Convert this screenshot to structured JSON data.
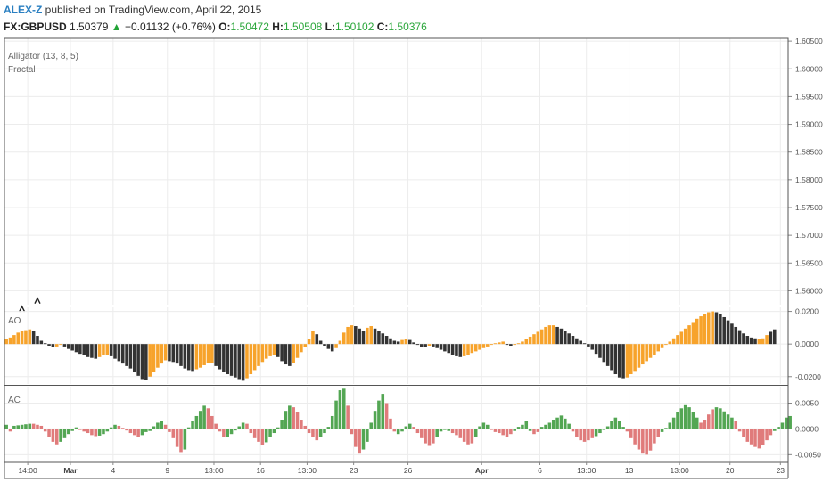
{
  "header": {
    "author": "ALEX-Z",
    "published": " published on TradingView.com, April 22, 2015",
    "symbol": "FX:GBPUSD",
    "last": "1.50379",
    "arrow": "▲",
    "change": "+0.01132 (+0.76%)",
    "o_label": "O:",
    "o_value": "1.50472",
    "h_label": "H:",
    "h_value": "1.50508",
    "l_label": "L:",
    "l_value": "1.50102",
    "c_label": "C:",
    "c_value": "1.50376"
  },
  "legend": {
    "main_line1": "Alligator (13, 8, 5)",
    "main_line2": "Fractal",
    "ao": "AO",
    "ac": "AC"
  },
  "colors": {
    "ao_up": "#f7a32b",
    "ao_down": "#333333",
    "ac_up": "#53a653",
    "ac_down": "#e07b7b",
    "grid": "#ececec",
    "border": "#555555"
  },
  "chart_data": [
    {
      "type": "line",
      "name": "main",
      "yticks": [
        "1.60500",
        "1.60000",
        "1.59500",
        "1.59000",
        "1.58500",
        "1.58000",
        "1.57500",
        "1.57000",
        "1.56500",
        "1.56000"
      ],
      "ylim": [
        1.5575,
        1.6055
      ],
      "fractals": [
        {
          "bar": 4,
          "price": 1.5567
        },
        {
          "bar": 8,
          "price": 1.5582
        }
      ]
    },
    {
      "type": "bar",
      "name": "AO",
      "yticks": [
        "0.0200",
        "0.0000",
        "-0.0200"
      ],
      "ylim": [
        -0.0245,
        0.0225
      ],
      "values": [
        0.003,
        0.004,
        0.0055,
        0.007,
        0.008,
        0.0085,
        0.009,
        0.008,
        0.005,
        0.002,
        0.0005,
        -0.001,
        -0.002,
        -0.0015,
        -0.0005,
        -0.0015,
        -0.003,
        -0.004,
        -0.005,
        -0.006,
        -0.007,
        -0.008,
        -0.0085,
        -0.009,
        -0.008,
        -0.007,
        -0.0065,
        -0.0075,
        -0.009,
        -0.0105,
        -0.012,
        -0.0135,
        -0.015,
        -0.017,
        -0.0195,
        -0.0215,
        -0.022,
        -0.02,
        -0.017,
        -0.0145,
        -0.012,
        -0.01,
        -0.0105,
        -0.011,
        -0.012,
        -0.0135,
        -0.015,
        -0.016,
        -0.0165,
        -0.0155,
        -0.0145,
        -0.013,
        -0.0115,
        -0.0115,
        -0.0135,
        -0.0155,
        -0.017,
        -0.0185,
        -0.0195,
        -0.0205,
        -0.0215,
        -0.0225,
        -0.021,
        -0.0185,
        -0.016,
        -0.0135,
        -0.011,
        -0.009,
        -0.0075,
        -0.0065,
        -0.008,
        -0.0105,
        -0.0125,
        -0.0135,
        -0.0115,
        -0.0085,
        -0.005,
        -0.002,
        0.003,
        0.008,
        0.006,
        0.002,
        -0.001,
        -0.003,
        -0.0045,
        -0.0025,
        0.002,
        0.007,
        0.0105,
        0.0115,
        0.011,
        0.0095,
        0.008,
        0.01,
        0.011,
        0.0095,
        0.008,
        0.0065,
        0.005,
        0.0035,
        0.002,
        0.0015,
        0.0025,
        0.003,
        0.0025,
        0.001,
        -0.0005,
        -0.002,
        -0.002,
        -0.001,
        -0.0015,
        -0.0025,
        -0.0035,
        -0.0045,
        -0.0055,
        -0.0065,
        -0.0075,
        -0.008,
        -0.0075,
        -0.0065,
        -0.0055,
        -0.0045,
        -0.0035,
        -0.0025,
        -0.0015,
        -0.0005,
        0.0005,
        0.001,
        0.0015,
        -0.0005,
        -0.001,
        -0.0005,
        0.0005,
        0.0015,
        0.003,
        0.0045,
        0.006,
        0.0075,
        0.009,
        0.0105,
        0.0115,
        0.0115,
        0.0105,
        0.0095,
        0.008,
        0.0065,
        0.005,
        0.0035,
        0.002,
        0.0005,
        -0.0015,
        -0.0035,
        -0.006,
        -0.0085,
        -0.011,
        -0.0135,
        -0.016,
        -0.0185,
        -0.0205,
        -0.021,
        -0.0205,
        -0.0185,
        -0.0165,
        -0.0145,
        -0.0125,
        -0.0105,
        -0.0085,
        -0.0065,
        -0.0045,
        -0.0025,
        -0.0005,
        0.0015,
        0.0035,
        0.0055,
        0.0075,
        0.0095,
        0.0115,
        0.0135,
        0.0155,
        0.017,
        0.0185,
        0.0195,
        0.02,
        0.0195,
        0.0185,
        0.0165,
        0.0145,
        0.0125,
        0.0105,
        0.0085,
        0.0065,
        0.005,
        0.004,
        0.0035,
        0.003,
        0.0035,
        0.0055,
        0.0075,
        0.009
      ],
      "colors_up": [
        true,
        true,
        true,
        true,
        true,
        true,
        true,
        false,
        false,
        false,
        false,
        false,
        false,
        true,
        true,
        false,
        false,
        false,
        false,
        false,
        false,
        false,
        false,
        false,
        true,
        true,
        true,
        false,
        false,
        false,
        false,
        false,
        false,
        false,
        false,
        false,
        false,
        true,
        true,
        true,
        true,
        true,
        false,
        false,
        false,
        false,
        false,
        false,
        false,
        true,
        true,
        true,
        true,
        true,
        false,
        false,
        false,
        false,
        false,
        false,
        false,
        false,
        true,
        true,
        true,
        true,
        true,
        true,
        true,
        true,
        false,
        false,
        false,
        false,
        true,
        true,
        true,
        true,
        true,
        true,
        false,
        false,
        false,
        false,
        false,
        true,
        true,
        true,
        true,
        true,
        false,
        false,
        false,
        true,
        true,
        false,
        false,
        false,
        false,
        false,
        false,
        false,
        true,
        true,
        false,
        false,
        false,
        false,
        false,
        true,
        false,
        false,
        false,
        false,
        false,
        false,
        false,
        false,
        true,
        true,
        true,
        true,
        true,
        true,
        true,
        true,
        true,
        true,
        true,
        false,
        false,
        true,
        true,
        true,
        true,
        true,
        true,
        true,
        true,
        true,
        true,
        true,
        false,
        false,
        false,
        false,
        false,
        false,
        false,
        false,
        false,
        false,
        false,
        false,
        false,
        false,
        false,
        false,
        false,
        false,
        true,
        true,
        true,
        true,
        true,
        true,
        true,
        true,
        true,
        true,
        true,
        true,
        true,
        true,
        true,
        true,
        true,
        true,
        true,
        true,
        true,
        true,
        true,
        false,
        false,
        false,
        false,
        false,
        false,
        false,
        false,
        false,
        false,
        false,
        true,
        true,
        true
      ]
    },
    {
      "type": "bar",
      "name": "AC",
      "yticks": [
        "0.0050",
        "0.0000",
        "-0.0050"
      ],
      "ylim": [
        -0.0065,
        0.0082
      ],
      "values": [
        0.0008,
        -0.0005,
        0.0006,
        0.0007,
        0.0008,
        0.0009,
        0.001,
        0.001,
        0.0008,
        0.0006,
        -0.0005,
        -0.0015,
        -0.0025,
        -0.003,
        -0.0025,
        -0.0018,
        -0.001,
        -0.0004,
        0.0003,
        -0.0002,
        -0.0005,
        -0.0008,
        -0.0012,
        -0.0014,
        -0.0013,
        -0.001,
        -0.0005,
        0.0003,
        0.0008,
        0.0006,
        0.0002,
        -0.0003,
        -0.0008,
        -0.0012,
        -0.0016,
        -0.0012,
        -0.0006,
        -0.0004,
        0.0005,
        0.0012,
        0.0015,
        0.0008,
        -0.0006,
        -0.0018,
        -0.0035,
        -0.0045,
        -0.004,
        0.0003,
        0.0015,
        0.0025,
        0.0035,
        0.0045,
        0.004,
        0.0025,
        0.001,
        -0.0005,
        -0.0015,
        -0.0016,
        -0.001,
        -0.0003,
        0.0005,
        0.0012,
        0.001,
        -0.0008,
        -0.0018,
        -0.0025,
        -0.0032,
        -0.0026,
        -0.0015,
        -0.0008,
        0.0003,
        0.0018,
        0.0035,
        0.0045,
        0.0042,
        0.0032,
        0.0018,
        0.0006,
        -0.0008,
        -0.0016,
        -0.0022,
        -0.0015,
        -0.0008,
        0.0004,
        0.0025,
        0.0055,
        0.0075,
        0.0078,
        0.0045,
        -0.001,
        -0.0035,
        -0.0048,
        -0.004,
        -0.0025,
        0.0012,
        0.0035,
        0.0055,
        0.0068,
        0.005,
        0.002,
        -0.0005,
        -0.001,
        -0.0005,
        0.0005,
        0.001,
        0.0004,
        -0.0008,
        -0.0018,
        -0.0028,
        -0.0033,
        -0.0028,
        -0.0015,
        -0.0005,
        -0.0002,
        -0.0004,
        -0.0008,
        -0.0012,
        -0.0018,
        -0.0025,
        -0.003,
        -0.0028,
        -0.0015,
        0.0005,
        0.0012,
        0.0008,
        -0.0002,
        -0.0006,
        -0.0008,
        -0.0012,
        -0.0015,
        -0.001,
        -0.0004,
        0.0004,
        0.0008,
        0.0015,
        -0.0004,
        -0.001,
        -0.0006,
        0.0004,
        0.0008,
        0.0012,
        0.0018,
        0.0022,
        0.0026,
        0.002,
        0.001,
        -0.0005,
        -0.0015,
        -0.0022,
        -0.0025,
        -0.0022,
        -0.0018,
        -0.0014,
        -0.0008,
        -0.0002,
        0.0005,
        0.0015,
        0.0022,
        0.0016,
        0.0004,
        -0.0005,
        -0.0018,
        -0.003,
        -0.004,
        -0.0048,
        -0.005,
        -0.0042,
        -0.0028,
        -0.0015,
        -0.0006,
        0.0002,
        0.0012,
        0.0022,
        0.0032,
        0.004,
        0.0046,
        0.0042,
        0.0032,
        0.0022,
        0.0012,
        0.0018,
        0.0028,
        0.0038,
        0.0042,
        0.004,
        0.0034,
        0.0028,
        0.0022,
        0.0015,
        -0.0005,
        -0.0015,
        -0.0025,
        -0.003,
        -0.0035,
        -0.0038,
        -0.0032,
        -0.0022,
        -0.0012,
        -0.0004,
        0.0004,
        0.0012,
        0.0022,
        0.0025
      ],
      "colors_up": [
        true,
        false,
        true,
        true,
        true,
        true,
        true,
        false,
        false,
        false,
        false,
        false,
        false,
        false,
        true,
        true,
        true,
        true,
        true,
        false,
        false,
        false,
        false,
        false,
        true,
        true,
        true,
        true,
        true,
        false,
        false,
        false,
        false,
        false,
        false,
        true,
        true,
        true,
        true,
        true,
        true,
        false,
        false,
        false,
        false,
        false,
        true,
        true,
        true,
        true,
        true,
        true,
        false,
        false,
        false,
        false,
        false,
        true,
        true,
        true,
        true,
        true,
        false,
        false,
        false,
        false,
        false,
        true,
        true,
        true,
        true,
        true,
        true,
        true,
        false,
        false,
        false,
        false,
        false,
        false,
        false,
        true,
        true,
        true,
        true,
        true,
        true,
        true,
        false,
        false,
        false,
        false,
        true,
        true,
        true,
        true,
        true,
        true,
        false,
        false,
        false,
        true,
        true,
        true,
        true,
        false,
        false,
        false,
        false,
        false,
        false,
        true,
        true,
        true,
        true,
        false,
        false,
        false,
        false,
        false,
        false,
        true,
        true,
        true,
        true,
        false,
        false,
        false,
        false,
        false,
        false,
        true,
        true,
        true,
        true,
        true,
        false,
        false,
        true,
        true,
        true,
        true,
        true,
        true,
        true,
        true,
        false,
        false,
        false,
        false,
        false,
        false,
        true,
        true,
        true,
        true,
        true,
        true,
        true,
        true,
        false,
        false,
        false,
        false,
        false,
        false,
        false,
        false,
        false,
        true,
        true,
        true,
        true,
        true,
        true,
        true,
        true,
        true,
        true,
        false,
        false,
        false,
        false,
        true,
        true,
        true,
        true,
        true,
        false,
        false,
        false,
        false,
        false,
        false,
        false,
        false,
        false,
        false,
        true,
        true,
        true,
        true,
        true,
        true,
        true
      ]
    }
  ],
  "xaxis": {
    "ticks": [
      {
        "label": "14:00",
        "bar": 6,
        "bold": false
      },
      {
        "label": "Mar",
        "bar": 17,
        "bold": true
      },
      {
        "label": "4",
        "bar": 28,
        "bold": false
      },
      {
        "label": "9",
        "bar": 42,
        "bold": false
      },
      {
        "label": "13:00",
        "bar": 54,
        "bold": false
      },
      {
        "label": "16",
        "bar": 66,
        "bold": false
      },
      {
        "label": "13:00",
        "bar": 78,
        "bold": false
      },
      {
        "label": "23",
        "bar": 90,
        "bold": false
      },
      {
        "label": "26",
        "bar": 104,
        "bold": false
      },
      {
        "label": "Apr",
        "bar": 123,
        "bold": true
      },
      {
        "label": "6",
        "bar": 138,
        "bold": false
      },
      {
        "label": "13:00",
        "bar": 150,
        "bold": false
      },
      {
        "label": "13",
        "bar": 161,
        "bold": false
      },
      {
        "label": "13:00",
        "bar": 174,
        "bold": false
      },
      {
        "label": "20",
        "bar": 187,
        "bold": false
      },
      {
        "label": "23",
        "bar": 200,
        "bold": false
      }
    ]
  }
}
